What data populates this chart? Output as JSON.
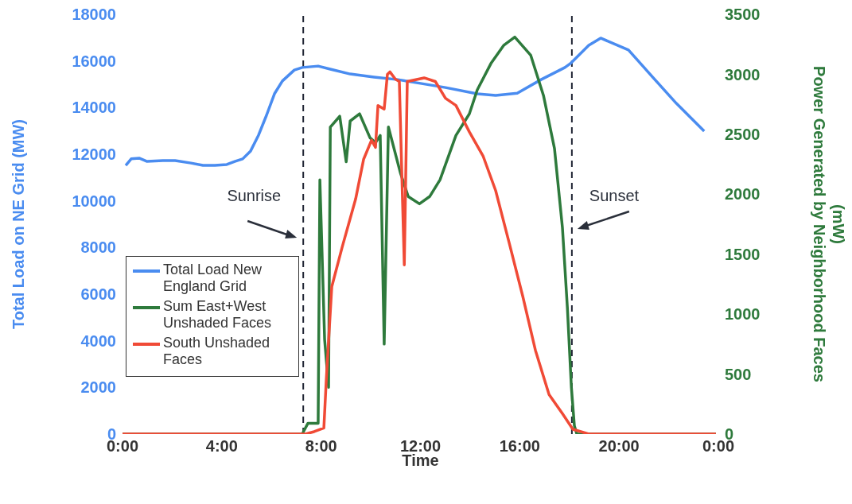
{
  "chart_data": {
    "type": "line",
    "xlabel": "Time",
    "ylabel": "Total Load on NE Grid (MW)",
    "y2label": "Power Generated by Neighborhood Faces (mW)",
    "xlim": [
      0,
      24
    ],
    "xticks": [
      {
        "value": 0,
        "label": "0:00"
      },
      {
        "value": 4,
        "label": "4:00"
      },
      {
        "value": 8,
        "label": "8:00"
      },
      {
        "value": 12,
        "label": "12:00"
      },
      {
        "value": 16,
        "label": "16:00"
      },
      {
        "value": 20,
        "label": "20:00"
      },
      {
        "value": 24,
        "label": "0:00"
      }
    ],
    "ylim": [
      0,
      18000
    ],
    "yticks": [
      0,
      2000,
      4000,
      6000,
      8000,
      10000,
      12000,
      14000,
      16000,
      18000
    ],
    "y2lim": [
      0,
      3500
    ],
    "y2ticks": [
      0,
      500,
      1000,
      1500,
      2000,
      2500,
      3000,
      3500
    ],
    "grid": false,
    "legend": "bottom left",
    "marker": "none",
    "line_style": "solid",
    "ref_lines": [
      {
        "axis": "x",
        "value": 7.28,
        "label": "Sunrise",
        "line_style": "dashed",
        "color": "#1f2433"
      },
      {
        "axis": "x",
        "value": 18.1,
        "label": "Sunset",
        "line_style": "dashed",
        "color": "#1f2433"
      }
    ],
    "series": [
      {
        "name": "Total Load New England Grid",
        "color": "#4a8cf0",
        "x": [
          0.13,
          0.35,
          0.67,
          0.99,
          1.63,
          2.12,
          2.76,
          3.24,
          3.72,
          4.2,
          4.52,
          4.84,
          5.16,
          5.48,
          5.8,
          6.12,
          6.44,
          6.92,
          7.24,
          7.88,
          8.37,
          9.17,
          10.13,
          11.09,
          12.05,
          13.01,
          14.29,
          15.03,
          15.9,
          16.86,
          17.82,
          18.04,
          18.78,
          19.26,
          20.38,
          21.35,
          22.31,
          22.95,
          23.43
        ],
        "values": [
          11520,
          11800,
          11830,
          11690,
          11730,
          11730,
          11620,
          11520,
          11520,
          11560,
          11690,
          11800,
          12140,
          12820,
          13670,
          14590,
          15140,
          15610,
          15720,
          15780,
          15650,
          15440,
          15310,
          15200,
          15030,
          14860,
          14590,
          14520,
          14620,
          15200,
          15720,
          15890,
          16670,
          16980,
          16470,
          15310,
          14180,
          13500,
          12990
        ]
      },
      {
        "name": "Sum East+West Unshaded Faces",
        "color": "#2e7a3c",
        "axis": "y2",
        "x": [
          0,
          7.24,
          7.34,
          7.47,
          7.88,
          7.95,
          8.14,
          8.3,
          8.37,
          8.75,
          9.01,
          9.17,
          9.55,
          9.97,
          10.19,
          10.38,
          10.54,
          10.71,
          11.19,
          11.51,
          11.96,
          12.37,
          12.79,
          13.43,
          13.97,
          14.29,
          14.84,
          15.35,
          15.8,
          16.44,
          16.96,
          17.4,
          17.72,
          17.92,
          18.08,
          18.2,
          18.3,
          23.9
        ],
        "values": [
          0,
          0,
          40,
          90,
          90,
          2120,
          790,
          390,
          2560,
          2650,
          2270,
          2610,
          2670,
          2470,
          2430,
          2490,
          750,
          2560,
          2180,
          1980,
          1920,
          1980,
          2120,
          2490,
          2670,
          2870,
          3090,
          3240,
          3310,
          3160,
          2820,
          2380,
          1720,
          1050,
          390,
          70,
          0,
          0
        ]
      },
      {
        "name": "South Unshaded Faces",
        "color": "#f04a36",
        "axis": "y2",
        "x": [
          0,
          7.37,
          7.72,
          8.11,
          8.21,
          8.43,
          8.85,
          9.39,
          9.71,
          10.03,
          10.19,
          10.29,
          10.54,
          10.67,
          10.77,
          10.99,
          11.15,
          11.35,
          11.47,
          12.15,
          12.6,
          13.01,
          13.43,
          13.97,
          14.52,
          15.03,
          15.58,
          16.12,
          16.63,
          17.18,
          17.72,
          18.14,
          18.78,
          23.9
        ],
        "values": [
          0,
          0,
          20,
          50,
          460,
          1230,
          1560,
          1960,
          2290,
          2450,
          2390,
          2740,
          2710,
          3000,
          3020,
          2960,
          2940,
          1410,
          2940,
          2970,
          2940,
          2800,
          2740,
          2520,
          2320,
          2030,
          1590,
          1150,
          700,
          330,
          170,
          40,
          0,
          0
        ]
      }
    ]
  }
}
